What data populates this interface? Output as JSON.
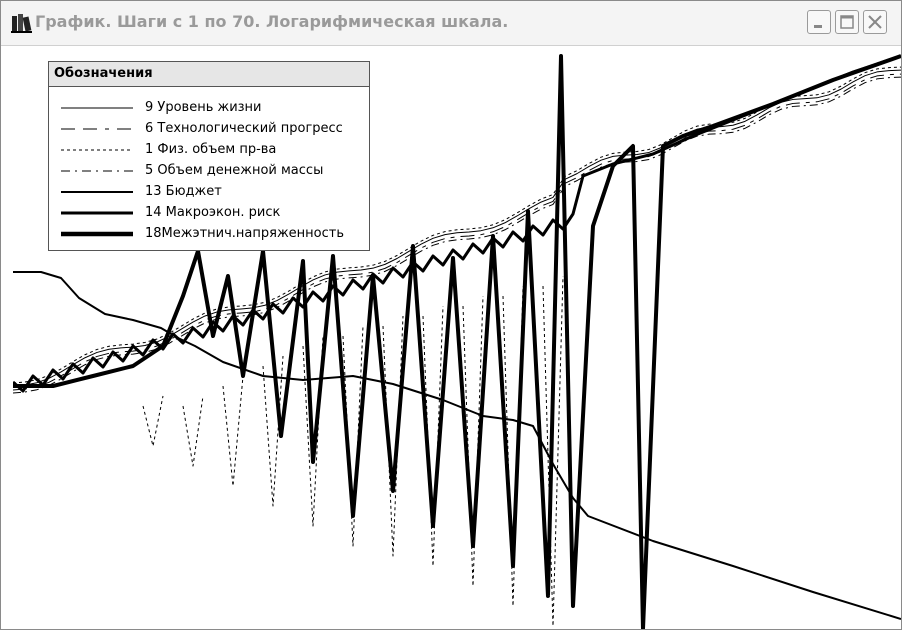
{
  "window": {
    "title": "График. Шаги с 1 по 70. Логарифмическая шкала.",
    "icon": "books-icon",
    "controls": [
      "minimize-icon",
      "maximize-icon",
      "close-icon"
    ]
  },
  "legend": {
    "title": "Обозначения",
    "items": [
      {
        "label": "9 Уровень жизни",
        "style": "solid",
        "weight": 1
      },
      {
        "label": "6 Технологический прогресс",
        "style": "long-dash",
        "weight": 1
      },
      {
        "label": "1 Физ. объем пр-ва",
        "style": "dotted",
        "weight": 1
      },
      {
        "label": "5 Объем денежной массы",
        "style": "dash-dot",
        "weight": 1
      },
      {
        "label": "13 Бюджет",
        "style": "solid",
        "weight": 2
      },
      {
        "label": "14 Макроэкон. риск",
        "style": "solid",
        "weight": 3
      },
      {
        "label": "18Межэтнич.напряженность",
        "style": "solid",
        "weight": 4
      }
    ]
  },
  "chart_data": {
    "type": "line",
    "log_scale": true,
    "grid": false,
    "legend_position": "top-left",
    "colors": {
      "lines": "#000000",
      "background": "#ffffff"
    },
    "x": [
      1,
      70
    ],
    "series": [
      {
        "name": "9 Уровень жизни",
        "trend": "rising with oscillations",
        "style": "solid",
        "weight": 1
      },
      {
        "name": "6 Технологический прогресс",
        "trend": "rising with oscillations",
        "style": "long-dash",
        "weight": 1
      },
      {
        "name": "1 Физ. объем пр-ва",
        "trend": "rising with oscillations",
        "style": "dotted",
        "weight": 1
      },
      {
        "name": "5 Объем денежной массы",
        "trend": "rising with oscillations",
        "style": "dash-dot",
        "weight": 1
      },
      {
        "name": "13 Бюджет",
        "trend": "declining",
        "style": "solid",
        "weight": 2
      },
      {
        "name": "14 Макроэкон. риск",
        "trend": "rising with oscillations",
        "style": "solid",
        "weight": 3
      },
      {
        "name": "18Межэтнич.напряженность",
        "trend": "rising with large oscillations",
        "style": "solid",
        "weight": 4
      }
    ]
  }
}
